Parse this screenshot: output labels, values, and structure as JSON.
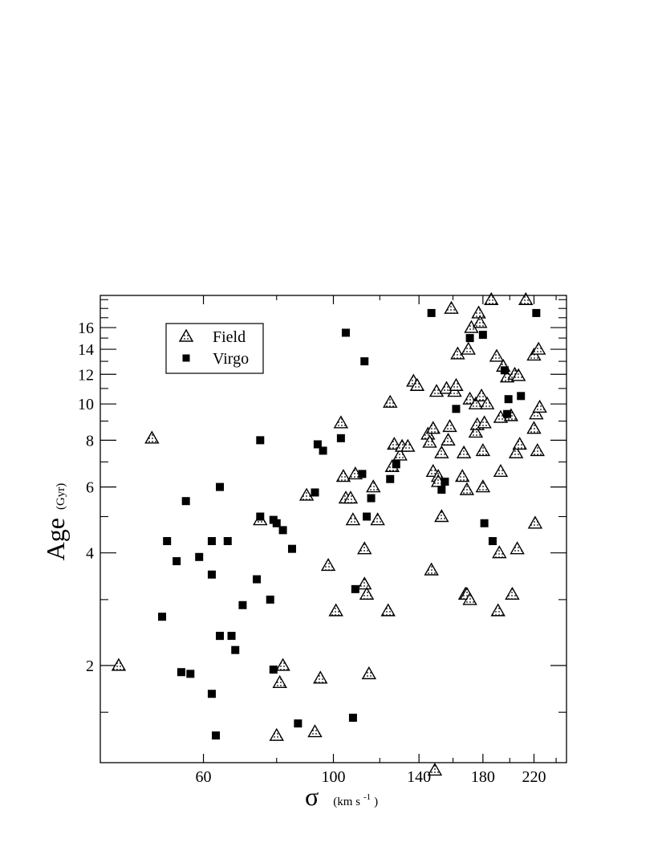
{
  "chart_data": {
    "type": "scatter",
    "xlabel": {
      "symbol": "σ",
      "unit_base": "(km s",
      "unit_sup": "-1",
      "unit_close": ")"
    },
    "ylabel": {
      "text": "Age",
      "unit": "(Gyr)"
    },
    "x_scale": "log",
    "y_scale": "log",
    "xlim": [
      40,
      250
    ],
    "ylim": [
      1.1,
      19.5
    ],
    "x_ticks": [
      60,
      100,
      140,
      180,
      220
    ],
    "x_minor_ticks": [
      80,
      120,
      160,
      200,
      240
    ],
    "y_ticks": [
      2,
      4,
      6,
      8,
      10,
      12,
      14,
      16
    ],
    "y_minor_ticks": [
      1.5,
      3,
      5,
      7,
      9,
      11,
      13,
      15,
      17,
      18,
      19
    ],
    "y_tick_labels": [
      "2",
      "4",
      "6",
      "8",
      "10",
      "12",
      "14",
      "16"
    ],
    "grid": false,
    "legend": {
      "position": "top-left",
      "entries": [
        {
          "label": "Field",
          "marker": "triangle-dotted"
        },
        {
          "label": "Virgo",
          "marker": "square-filled"
        }
      ]
    },
    "series": [
      {
        "name": "Field",
        "marker": "triangle-dotted",
        "points": [
          [
            43,
            2.0
          ],
          [
            49,
            8.1
          ],
          [
            75,
            4.9
          ],
          [
            80,
            1.3
          ],
          [
            81,
            1.8
          ],
          [
            82,
            2.0
          ],
          [
            90,
            5.7
          ],
          [
            93,
            1.33
          ],
          [
            95,
            1.85
          ],
          [
            98,
            3.7
          ],
          [
            101,
            2.8
          ],
          [
            103,
            8.9
          ],
          [
            104,
            6.4
          ],
          [
            105,
            5.6
          ],
          [
            107,
            5.6
          ],
          [
            108,
            4.9
          ],
          [
            109,
            6.5
          ],
          [
            113,
            4.1
          ],
          [
            113,
            3.3
          ],
          [
            114,
            3.1
          ],
          [
            115,
            1.9
          ],
          [
            117,
            6.0
          ],
          [
            119,
            4.9
          ],
          [
            124,
            2.8
          ],
          [
            125,
            10.1
          ],
          [
            126,
            6.8
          ],
          [
            127,
            7.8
          ],
          [
            130,
            7.3
          ],
          [
            131,
            7.7
          ],
          [
            134,
            7.7
          ],
          [
            137,
            11.5
          ],
          [
            139,
            11.2
          ],
          [
            145,
            8.3
          ],
          [
            146,
            7.9
          ],
          [
            147,
            3.6
          ],
          [
            148,
            6.6
          ],
          [
            148,
            8.6
          ],
          [
            149,
            1.05
          ],
          [
            150,
            10.8
          ],
          [
            151,
            6.4
          ],
          [
            151,
            6.2
          ],
          [
            153,
            5.0
          ],
          [
            153,
            7.4
          ],
          [
            156,
            11.0
          ],
          [
            157,
            8.0
          ],
          [
            158,
            8.7
          ],
          [
            159,
            18.0
          ],
          [
            161,
            10.8
          ],
          [
            162,
            11.2
          ],
          [
            163,
            13.6
          ],
          [
            166,
            6.4
          ],
          [
            167,
            7.4
          ],
          [
            168,
            3.1
          ],
          [
            169,
            3.1
          ],
          [
            169,
            5.9
          ],
          [
            170,
            14.0
          ],
          [
            171,
            3.0
          ],
          [
            171,
            10.3
          ],
          [
            172,
            16.0
          ],
          [
            175,
            8.4
          ],
          [
            175,
            10.0
          ],
          [
            176,
            8.8
          ],
          [
            177,
            17.5
          ],
          [
            178,
            16.5
          ],
          [
            179,
            10.5
          ],
          [
            180,
            7.5
          ],
          [
            180,
            6.0
          ],
          [
            181,
            8.9
          ],
          [
            183,
            10.0
          ],
          [
            186,
            19.0
          ],
          [
            190,
            13.4
          ],
          [
            191,
            2.8
          ],
          [
            192,
            4.0
          ],
          [
            193,
            6.6
          ],
          [
            193,
            9.2
          ],
          [
            195,
            12.6
          ],
          [
            198,
            11.8
          ],
          [
            201,
            9.3
          ],
          [
            202,
            3.1
          ],
          [
            204,
            12.0
          ],
          [
            205,
            7.4
          ],
          [
            206,
            4.1
          ],
          [
            207,
            11.9
          ],
          [
            208,
            7.8
          ],
          [
            213,
            19.0
          ],
          [
            220,
            13.5
          ],
          [
            220,
            8.6
          ],
          [
            221,
            4.8
          ],
          [
            222,
            9.4
          ],
          [
            223,
            7.5
          ],
          [
            224,
            14.0
          ],
          [
            225,
            9.8
          ]
        ]
      },
      {
        "name": "Virgo",
        "marker": "square-filled",
        "points": [
          [
            51,
            2.7
          ],
          [
            52,
            4.3
          ],
          [
            54,
            3.8
          ],
          [
            55,
            1.92
          ],
          [
            56,
            5.5
          ],
          [
            57,
            1.9
          ],
          [
            59,
            3.9
          ],
          [
            62,
            4.3
          ],
          [
            62,
            3.5
          ],
          [
            62,
            1.68
          ],
          [
            63,
            1.3
          ],
          [
            64,
            6.0
          ],
          [
            64,
            2.4
          ],
          [
            64,
            2.4
          ],
          [
            66,
            4.3
          ],
          [
            67,
            2.4
          ],
          [
            68,
            2.2
          ],
          [
            70,
            2.9
          ],
          [
            74,
            3.4
          ],
          [
            75,
            5.0
          ],
          [
            75,
            8.0
          ],
          [
            78,
            3.0
          ],
          [
            79,
            1.95
          ],
          [
            79,
            4.9
          ],
          [
            80,
            4.8
          ],
          [
            82,
            4.6
          ],
          [
            85,
            4.1
          ],
          [
            87,
            1.4
          ],
          [
            93,
            5.8
          ],
          [
            94,
            7.8
          ],
          [
            96,
            7.5
          ],
          [
            103,
            8.1
          ],
          [
            105,
            15.5
          ],
          [
            108,
            1.45
          ],
          [
            109,
            3.2
          ],
          [
            112,
            6.5
          ],
          [
            113,
            13.0
          ],
          [
            114,
            5.0
          ],
          [
            116,
            5.6
          ],
          [
            125,
            6.3
          ],
          [
            128,
            6.9
          ],
          [
            147,
            17.5
          ],
          [
            153,
            5.9
          ],
          [
            155,
            6.2
          ],
          [
            162,
            9.7
          ],
          [
            171,
            15.0
          ],
          [
            180,
            15.3
          ],
          [
            181,
            4.8
          ],
          [
            187,
            4.3
          ],
          [
            196,
            12.3
          ],
          [
            198,
            9.4
          ],
          [
            199,
            10.3
          ],
          [
            209,
            10.5
          ],
          [
            222,
            17.5
          ]
        ]
      }
    ]
  }
}
